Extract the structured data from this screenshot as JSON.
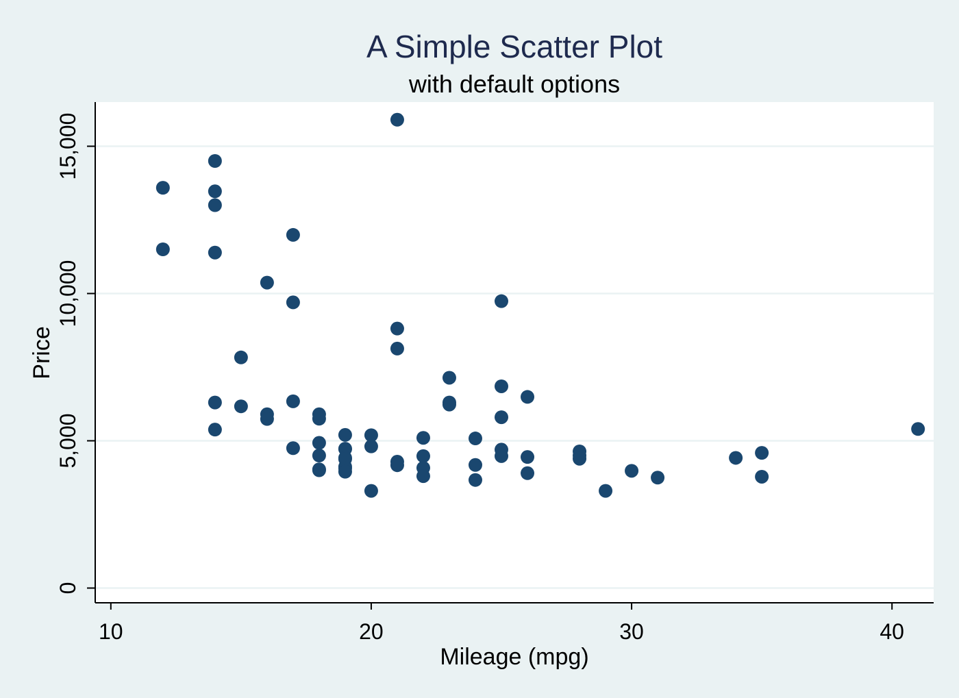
{
  "chart_data": {
    "type": "scatter",
    "title": "A Simple Scatter Plot",
    "subtitle": "with default options",
    "xlabel": "Mileage (mpg)",
    "ylabel": "Price",
    "xlim": [
      9.4,
      41.6
    ],
    "ylim": [
      -500,
      16500
    ],
    "x_ticks": [
      10,
      20,
      30,
      40
    ],
    "x_tick_labels": [
      "10",
      "20",
      "30",
      "40"
    ],
    "y_ticks": [
      0,
      5000,
      10000,
      15000
    ],
    "y_tick_labels": [
      "0",
      "5,000",
      "10,000",
      "15,000"
    ],
    "grid": "horizontal",
    "legend": "none",
    "colors": {
      "background": "#eaf2f3",
      "plot_area": "#ffffff",
      "marker": "#1a476f",
      "gridline": "#eaf2f3",
      "text": "#000000",
      "title": "#1e2a4e"
    },
    "points": [
      {
        "x": 12,
        "y": 13590
      },
      {
        "x": 12,
        "y": 11500
      },
      {
        "x": 14,
        "y": 14500
      },
      {
        "x": 14,
        "y": 13470
      },
      {
        "x": 14,
        "y": 13000
      },
      {
        "x": 14,
        "y": 11390
      },
      {
        "x": 14,
        "y": 6300
      },
      {
        "x": 14,
        "y": 5380
      },
      {
        "x": 15,
        "y": 7830
      },
      {
        "x": 15,
        "y": 6170
      },
      {
        "x": 16,
        "y": 10370
      },
      {
        "x": 16,
        "y": 5900
      },
      {
        "x": 16,
        "y": 5740
      },
      {
        "x": 17,
        "y": 11990
      },
      {
        "x": 17,
        "y": 9700
      },
      {
        "x": 17,
        "y": 6340
      },
      {
        "x": 17,
        "y": 4750
      },
      {
        "x": 18,
        "y": 5900
      },
      {
        "x": 18,
        "y": 5750
      },
      {
        "x": 18,
        "y": 4930
      },
      {
        "x": 18,
        "y": 4500
      },
      {
        "x": 18,
        "y": 4030
      },
      {
        "x": 18,
        "y": 4000
      },
      {
        "x": 19,
        "y": 5200
      },
      {
        "x": 19,
        "y": 4730
      },
      {
        "x": 19,
        "y": 4720
      },
      {
        "x": 19,
        "y": 4420
      },
      {
        "x": 19,
        "y": 4380
      },
      {
        "x": 19,
        "y": 4120
      },
      {
        "x": 19,
        "y": 4060
      },
      {
        "x": 19,
        "y": 3950
      },
      {
        "x": 20,
        "y": 5190
      },
      {
        "x": 20,
        "y": 4810
      },
      {
        "x": 20,
        "y": 3300
      },
      {
        "x": 21,
        "y": 15900
      },
      {
        "x": 21,
        "y": 8810
      },
      {
        "x": 21,
        "y": 8130
      },
      {
        "x": 21,
        "y": 4290
      },
      {
        "x": 21,
        "y": 4170
      },
      {
        "x": 22,
        "y": 5100
      },
      {
        "x": 22,
        "y": 4480
      },
      {
        "x": 22,
        "y": 4080
      },
      {
        "x": 22,
        "y": 3800
      },
      {
        "x": 23,
        "y": 7140
      },
      {
        "x": 23,
        "y": 6300
      },
      {
        "x": 23,
        "y": 6230
      },
      {
        "x": 24,
        "y": 5080
      },
      {
        "x": 24,
        "y": 4180
      },
      {
        "x": 24,
        "y": 3670
      },
      {
        "x": 25,
        "y": 9740
      },
      {
        "x": 25,
        "y": 6850
      },
      {
        "x": 25,
        "y": 5800
      },
      {
        "x": 25,
        "y": 4700
      },
      {
        "x": 25,
        "y": 4480
      },
      {
        "x": 26,
        "y": 6490
      },
      {
        "x": 26,
        "y": 4450
      },
      {
        "x": 26,
        "y": 3900
      },
      {
        "x": 28,
        "y": 4640
      },
      {
        "x": 28,
        "y": 4500
      },
      {
        "x": 28,
        "y": 4390
      },
      {
        "x": 29,
        "y": 3300
      },
      {
        "x": 30,
        "y": 3980
      },
      {
        "x": 31,
        "y": 3750
      },
      {
        "x": 34,
        "y": 4420
      },
      {
        "x": 35,
        "y": 4590
      },
      {
        "x": 35,
        "y": 3780
      },
      {
        "x": 41,
        "y": 5400
      }
    ]
  }
}
